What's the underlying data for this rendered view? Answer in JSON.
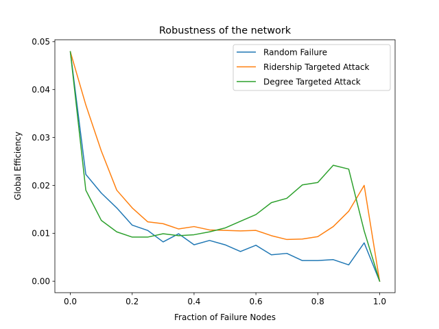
{
  "chart_data": {
    "type": "line",
    "title": "Robustness of the network",
    "xlabel": "Fraction of Failure Nodes",
    "ylabel": "Global Efficiency",
    "xlim": [
      -0.05,
      1.05
    ],
    "ylim": [
      -0.0024,
      0.0504
    ],
    "xticks": [
      0.0,
      0.2,
      0.4,
      0.6,
      0.8,
      1.0
    ],
    "xtick_labels": [
      "0.0",
      "0.2",
      "0.4",
      "0.6",
      "0.8",
      "1.0"
    ],
    "yticks": [
      0.0,
      0.01,
      0.02,
      0.03,
      0.04,
      0.05
    ],
    "ytick_labels": [
      "0.00",
      "0.01",
      "0.02",
      "0.03",
      "0.04",
      "0.05"
    ],
    "grid": false,
    "legend_position": "top-right",
    "x": [
      0.0,
      0.05,
      0.1,
      0.15,
      0.2,
      0.25,
      0.3,
      0.35,
      0.4,
      0.45,
      0.5,
      0.55,
      0.6,
      0.65,
      0.7,
      0.75,
      0.8,
      0.85,
      0.9,
      0.95,
      1.0
    ],
    "series": [
      {
        "name": "Random Failure",
        "color": "#1f77b4",
        "values": [
          0.0479,
          0.0223,
          0.0184,
          0.0153,
          0.0117,
          0.0106,
          0.0082,
          0.0099,
          0.0076,
          0.0085,
          0.0076,
          0.0062,
          0.0075,
          0.0055,
          0.0058,
          0.0043,
          0.0043,
          0.0045,
          0.0034,
          0.008,
          0.0
        ]
      },
      {
        "name": "Ridership Targeted Attack",
        "color": "#ff7f0e",
        "values": [
          0.0479,
          0.0368,
          0.0272,
          0.019,
          0.0153,
          0.0124,
          0.012,
          0.0109,
          0.0114,
          0.0107,
          0.0106,
          0.0105,
          0.0106,
          0.0095,
          0.0087,
          0.0088,
          0.0093,
          0.0114,
          0.0146,
          0.02,
          0.0
        ]
      },
      {
        "name": "Degree Targeted Attack",
        "color": "#2ca02c",
        "values": [
          0.0479,
          0.019,
          0.0127,
          0.0103,
          0.0092,
          0.0092,
          0.0099,
          0.0095,
          0.0097,
          0.0103,
          0.0111,
          0.0125,
          0.0139,
          0.0164,
          0.0173,
          0.0201,
          0.0206,
          0.0242,
          0.0234,
          0.0105,
          0.0
        ]
      }
    ]
  }
}
